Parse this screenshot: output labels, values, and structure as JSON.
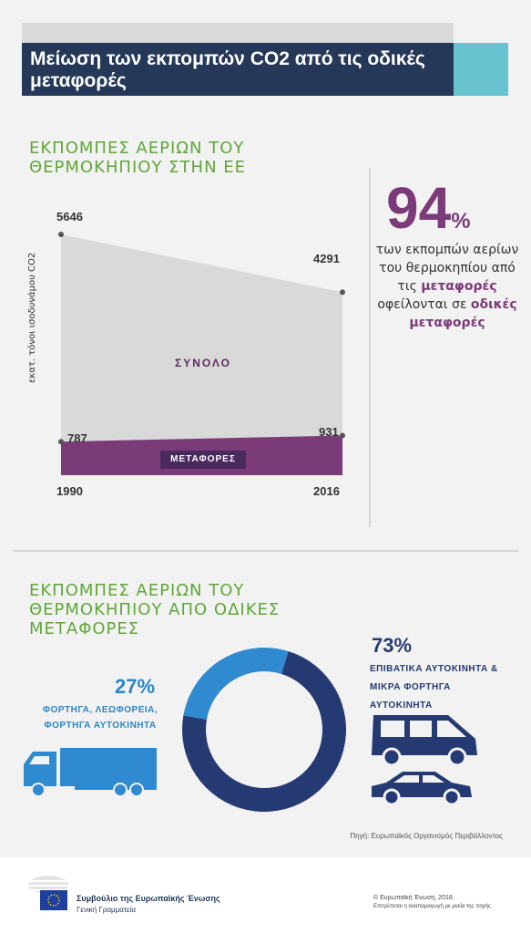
{
  "header": {
    "title": "Μείωση των εκπομπών CO2 από τις οδικές μεταφορές"
  },
  "chart_data": [
    {
      "type": "area",
      "title": "ΕΚΠΟΜΠΕΣ ΑΕΡΙΩΝ ΤΟΥ ΘΕΡΜΟΚΗΠΙΟΥ ΣΤΗΝ ΕΕ",
      "ylabel": "εκατ. τόνοι ισοδυνάμου CO2",
      "x": [
        "1990",
        "2016"
      ],
      "series": [
        {
          "name": "ΣΥΝΟΛΟ",
          "values": [
            5646,
            4291
          ],
          "color": "#d9d9d9"
        },
        {
          "name": "ΜΕΤΑΦΟΡΕΣ",
          "values": [
            787,
            931
          ],
          "color": "#7b3b78"
        }
      ],
      "ylim": [
        0,
        6000
      ]
    },
    {
      "type": "pie",
      "title": "ΕΚΠΟΜΠΕΣ ΑΕΡΙΩΝ ΤΟΥ ΘΕΡΜΟΚΗΠΙΟΥ ΑΠΟ ΟΔΙΚΕΣ ΜΕΤΑΦΟΡΕΣ",
      "slices": [
        {
          "label": "ΕΠΙΒΑΤΙΚΑ ΑΥΤΟΚΙΝΗΤΑ & ΜΙΚΡΑ ΦΟΡΤΗΓΑ ΑΥΤΟΚΙΝΗΤΑ",
          "value": 73,
          "display": "73%",
          "color": "#253a73"
        },
        {
          "label": "ΦΟΡΤΗΓΑ, ΛΕΩΦΟΡΕΙΑ, ΦΟΡΤΗΓΑ ΑΥΤΟΚΙΝΗΤΑ",
          "value": 27,
          "display": "27%",
          "color": "#2f8ad0"
        }
      ]
    }
  ],
  "stat": {
    "big": "94",
    "pct": "%",
    "text1": "των εκπομπών αερίων του θερμοκηπίου από τις",
    "hl1": "μεταφορές",
    "text2": "οφείλονται σε",
    "hl2": "οδικές μεταφορές"
  },
  "icons": [
    "truck-icon",
    "van-icon",
    "car-icon",
    "council-logo-icon",
    "eu-flag-icon"
  ],
  "source": "Πηγή: Ευρωπαϊκός Οργανισμός Περιβάλλοντος",
  "footer": {
    "org": "Συμβούλιο της Ευρωπαϊκής Ένωσης",
    "sub": "Γενική Γραμματεία",
    "copyright": "© Ευρωπαϊκή Ένωση, 2018.",
    "reuse": "Επιτρέπεται η αναπαραγωγή με μνεία της πηγής"
  }
}
